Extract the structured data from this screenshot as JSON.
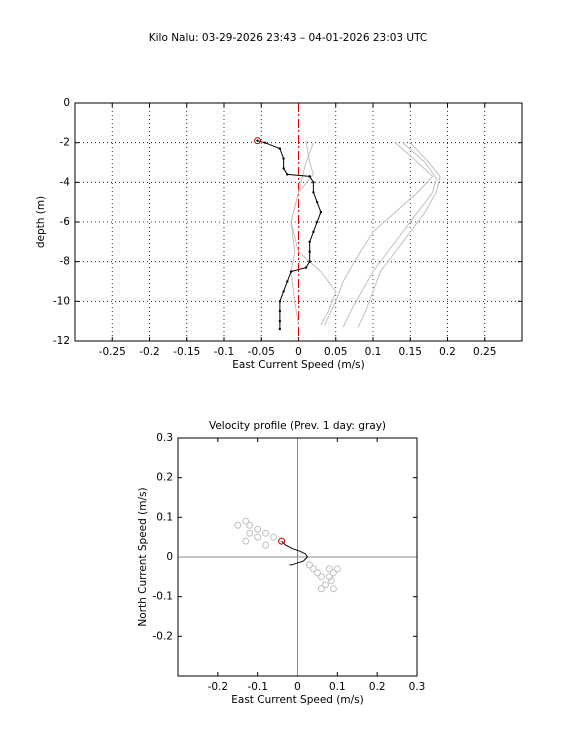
{
  "title": "Kilo Nalu: 03-29-2026 23:43 – 04-01-2026 23:03 UTC",
  "chart_data": [
    {
      "type": "line",
      "xlabel": "East Current Speed (m/s)",
      "ylabel": "depth (m)",
      "xlim": [
        -0.3,
        0.3
      ],
      "ylim": [
        -12,
        0
      ],
      "xticks": [
        -0.25,
        -0.2,
        -0.15,
        -0.1,
        -0.05,
        0,
        0.05,
        0.1,
        0.15,
        0.2,
        0.25
      ],
      "yticks": [
        0,
        -2,
        -4,
        -6,
        -8,
        -10,
        -12
      ],
      "grid": true,
      "vline": {
        "value": 0,
        "color": "#ff0000",
        "style": "dashed"
      },
      "series": [
        {
          "color": "#c0c0c0",
          "mode": "line",
          "x": [
            0.01,
            0.015,
            0.02,
            0.0,
            -0.01,
            -0.005,
            -0.01,
            -0.005,
            0.0
          ],
          "values": [
            -1.9,
            -3,
            -3.6,
            -4.5,
            -6,
            -7.5,
            -8.5,
            -10,
            -11.2
          ]
        },
        {
          "color": "#c0c0c0",
          "mode": "line",
          "x": [
            0.02,
            0.01,
            0.0,
            -0.01,
            0.0,
            0.03,
            0.05,
            0.04,
            0.03
          ],
          "values": [
            -2.0,
            -3,
            -4.5,
            -6,
            -7.5,
            -8.5,
            -9.5,
            -10.5,
            -11.2
          ]
        },
        {
          "color": "#c0c0c0",
          "mode": "line",
          "x": [
            0.13,
            0.16,
            0.18,
            0.16,
            0.13,
            0.1,
            0.075,
            0.06,
            0.05,
            0.035
          ],
          "values": [
            -2.0,
            -3.0,
            -3.7,
            -4.5,
            -5.5,
            -6.5,
            -8,
            -9,
            -10,
            -11.2
          ]
        },
        {
          "color": "#c0c0c0",
          "mode": "line",
          "x": [
            0.14,
            0.17,
            0.185,
            0.18,
            0.16,
            0.14,
            0.12,
            0.1,
            0.085,
            0.07,
            0.06
          ],
          "values": [
            -2.0,
            -3.0,
            -3.8,
            -4.5,
            -5.5,
            -6.5,
            -7.5,
            -8.5,
            -9.5,
            -10.5,
            -11.3
          ]
        },
        {
          "color": "#c0c0c0",
          "mode": "line",
          "x": [
            0.15,
            0.175,
            0.19,
            0.185,
            0.17,
            0.15,
            0.13,
            0.11,
            0.1,
            0.09,
            0.08
          ],
          "values": [
            -2.0,
            -3.0,
            -3.7,
            -4.5,
            -5.5,
            -6.5,
            -7.5,
            -8.5,
            -9.5,
            -10.5,
            -11.3
          ]
        },
        {
          "color": "#000000",
          "mode": "line+dots",
          "start_marker": "#cc0000",
          "x": [
            -0.055,
            -0.045,
            -0.025,
            -0.02,
            -0.02,
            -0.015,
            0.015,
            0.02,
            0.02,
            0.025,
            0.03,
            0.025,
            0.02,
            0.015,
            0.015,
            0.015,
            0.01,
            -0.01,
            -0.015,
            -0.02,
            -0.025,
            -0.025,
            -0.025,
            -0.025
          ],
          "values": [
            -1.9,
            -2.0,
            -2.3,
            -2.8,
            -3.3,
            -3.6,
            -3.7,
            -4.0,
            -4.5,
            -5.0,
            -5.5,
            -6.0,
            -6.5,
            -7.0,
            -7.5,
            -8.0,
            -8.3,
            -8.5,
            -9.0,
            -9.5,
            -10.0,
            -10.5,
            -11.0,
            -11.4
          ]
        }
      ]
    },
    {
      "type": "line",
      "title": "Velocity profile (Prev. 1 day: gray)",
      "xlabel": "East Current Speed (m/s)",
      "ylabel": "North Current Speed (m/s)",
      "xlim": [
        -0.3,
        0.3
      ],
      "ylim": [
        -0.3,
        0.3
      ],
      "xticks": [
        -0.2,
        -0.1,
        0,
        0.1,
        0.2,
        0.3
      ],
      "yticks": [
        -0.2,
        -0.1,
        0,
        0.1,
        0.2,
        0.3
      ],
      "grid": false,
      "vline": {
        "value": 0,
        "color": "#888888",
        "style": "solid"
      },
      "hline": {
        "value": 0,
        "color": "#888888",
        "style": "solid"
      },
      "series": [
        {
          "color": "#c0c0c0",
          "mode": "markers",
          "x": [
            -0.13,
            -0.12,
            -0.15,
            -0.1,
            -0.08,
            -0.06,
            -0.1,
            -0.12,
            -0.13,
            -0.08,
            0.03,
            0.05,
            0.06,
            0.08,
            0.09,
            0.085,
            0.07,
            0.09,
            0.06,
            0.08,
            0.1,
            0.04
          ],
          "values": [
            0.09,
            0.08,
            0.08,
            0.07,
            0.06,
            0.05,
            0.05,
            0.06,
            0.04,
            0.03,
            -0.02,
            -0.04,
            -0.05,
            -0.03,
            -0.04,
            -0.06,
            -0.07,
            -0.08,
            -0.08,
            -0.05,
            -0.03,
            -0.03
          ]
        },
        {
          "color": "#000000",
          "mode": "line",
          "start_marker": "#cc0000",
          "x": [
            -0.04,
            -0.03,
            -0.01,
            0.005,
            0.02,
            0.025,
            0.015,
            0.0,
            -0.015,
            -0.02
          ],
          "values": [
            0.04,
            0.03,
            0.02,
            0.015,
            0.008,
            0.0,
            -0.01,
            -0.015,
            -0.02,
            -0.02
          ]
        }
      ]
    }
  ]
}
